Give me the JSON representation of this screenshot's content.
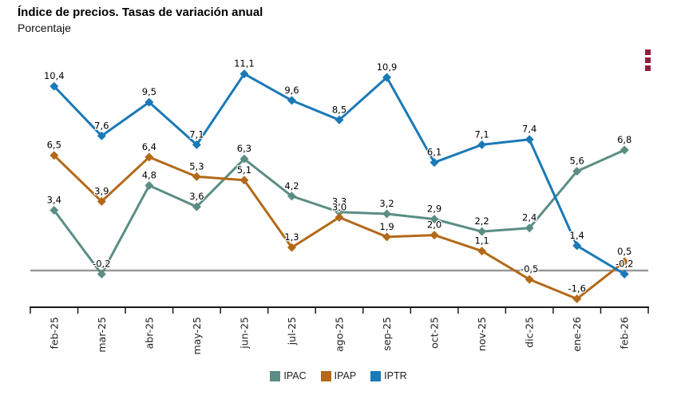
{
  "header": {
    "title": "Índice de precios. Tasas de variación anual",
    "subtitle": "Porcentaje"
  },
  "menu": {
    "kebab_color": "#8e1f3e"
  },
  "chart_data": {
    "type": "line",
    "title": "Índice de precios. Tasas de variación anual",
    "ylabel": "Porcentaje",
    "categories": [
      "feb-25",
      "mar-25",
      "abr-25",
      "may-25",
      "jun-25",
      "jul-25",
      "ago-25",
      "sep-25",
      "oct-25",
      "nov-25",
      "dic-25",
      "ene-26",
      "feb-26"
    ],
    "series": [
      {
        "name": "IPAC",
        "color": "#5b8d85",
        "values": [
          3.4,
          -0.2,
          4.8,
          3.6,
          6.3,
          4.2,
          3.3,
          3.2,
          2.9,
          2.2,
          2.4,
          5.6,
          6.8
        ]
      },
      {
        "name": "IPAP",
        "color": "#b36919",
        "values": [
          6.5,
          3.9,
          6.4,
          5.3,
          5.1,
          1.3,
          3.0,
          1.9,
          2.0,
          1.1,
          -0.5,
          -1.6,
          0.5
        ]
      },
      {
        "name": "IPTR",
        "color": "#1a79b6",
        "values": [
          10.4,
          7.6,
          9.5,
          7.1,
          11.1,
          9.6,
          8.5,
          10.9,
          6.1,
          7.1,
          7.4,
          1.4,
          -0.2
        ]
      }
    ],
    "decimal_separator": ",",
    "zero_line": true,
    "zero_line_color": "#999999",
    "axis_color": "#1a1a1a",
    "legend_position": "bottom",
    "ylim": [
      -2.5,
      12.5
    ],
    "grid": false
  }
}
